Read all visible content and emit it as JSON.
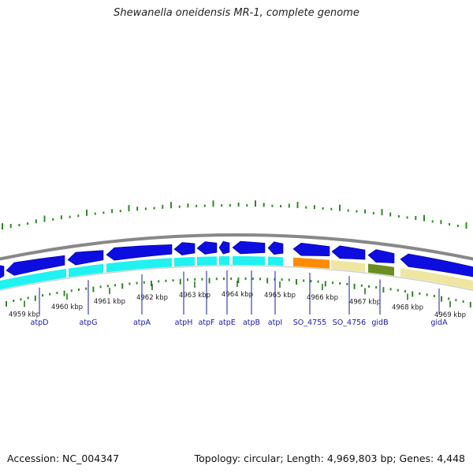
{
  "title": "Shewanella oneidensis MR-1, complete genome",
  "accession": "Accession: NC_004347",
  "topology": "Topology: circular; Length: 4,969,803 bp; Genes: 4,448",
  "colors": {
    "gene_arrow": "#0d0de0",
    "cyan_feature": "#1ff2f0",
    "orange_feature": "#ff8c00",
    "pale_feature": "#efe6a2",
    "olive_feature": "#6b8e23",
    "gc_ticks": "#2e8b22",
    "backbone": "#888888",
    "label": "#1a1ab4"
  },
  "kbp_labels": [
    "4959 kbp",
    "4960 kbp",
    "4961 kbp",
    "4962 kbp",
    "4963 kbp",
    "4964 kbp",
    "4965 kbp",
    "4966 kbp",
    "4967 kbp",
    "4968 kbp",
    "4969 kbp"
  ],
  "genes": [
    "atpD",
    "atpG",
    "atpA",
    "atpH",
    "atpF",
    "atpE",
    "atpB",
    "atpI",
    "SO_4755",
    "SO_4756",
    "gidB",
    "gidA"
  ]
}
